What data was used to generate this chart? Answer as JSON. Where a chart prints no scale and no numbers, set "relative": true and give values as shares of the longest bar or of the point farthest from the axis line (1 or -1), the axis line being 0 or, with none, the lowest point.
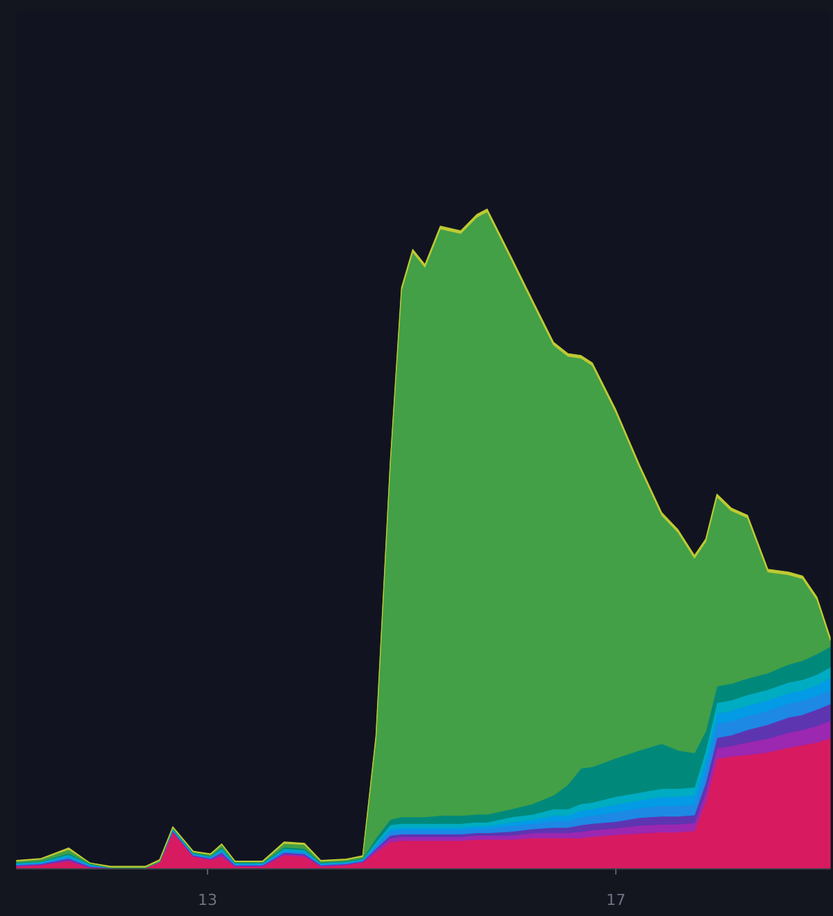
{
  "chart_data": {
    "type": "area",
    "stacked": true,
    "relative": true,
    "x": [
      11.13,
      11.37,
      11.64,
      11.85,
      12.05,
      12.39,
      12.53,
      12.66,
      12.86,
      13.03,
      13.14,
      13.27,
      13.54,
      13.75,
      13.95,
      14.11,
      14.36,
      14.52,
      14.65,
      14.79,
      14.9,
      15.01,
      15.13,
      15.28,
      15.48,
      15.64,
      15.74,
      15.98,
      16.19,
      16.39,
      16.53,
      16.66,
      16.77,
      17.0,
      17.23,
      17.45,
      17.61,
      17.77,
      17.88,
      17.99,
      18.13,
      18.29,
      18.49,
      18.69,
      18.83,
      18.97,
      19.1
    ],
    "xlim": [
      11.13,
      19.1
    ],
    "xticks": [
      13,
      17
    ],
    "series": [
      {
        "color": "#d81b60",
        "values": [
          0.004,
          0.006,
          0.012,
          0.002,
          0.002,
          0.002,
          0.01,
          0.056,
          0.019,
          0.014,
          0.019,
          0.004,
          0.004,
          0.021,
          0.019,
          0.004,
          0.006,
          0.01,
          0.025,
          0.041,
          0.043,
          0.043,
          0.043,
          0.043,
          0.043,
          0.045,
          0.045,
          0.045,
          0.047,
          0.047,
          0.047,
          0.047,
          0.049,
          0.052,
          0.054,
          0.056,
          0.056,
          0.058,
          0.103,
          0.167,
          0.171,
          0.173,
          0.177,
          0.184,
          0.188,
          0.192,
          0.198
        ]
      },
      {
        "color": "#9c27b0",
        "values": [
          0.001,
          0.001,
          0.002,
          0.001,
          0,
          0,
          0.001,
          0.001,
          0.001,
          0.001,
          0.004,
          0.001,
          0.001,
          0.002,
          0.002,
          0.001,
          0.001,
          0.001,
          0.004,
          0.006,
          0.006,
          0.006,
          0.006,
          0.006,
          0.006,
          0.006,
          0.006,
          0.006,
          0.008,
          0.008,
          0.008,
          0.01,
          0.01,
          0.01,
          0.012,
          0.012,
          0.012,
          0.012,
          0.014,
          0.016,
          0.016,
          0.019,
          0.021,
          0.023,
          0.023,
          0.025,
          0.027
        ]
      },
      {
        "color": "#5e35b1",
        "values": [
          0.001,
          0.001,
          0.002,
          0.001,
          0,
          0,
          0,
          0.001,
          0.001,
          0.001,
          0.002,
          0.001,
          0.001,
          0.002,
          0.002,
          0.001,
          0.001,
          0.001,
          0.002,
          0.004,
          0.004,
          0.004,
          0.004,
          0.004,
          0.004,
          0.004,
          0.004,
          0.006,
          0.006,
          0.008,
          0.008,
          0.01,
          0.01,
          0.01,
          0.012,
          0.012,
          0.012,
          0.012,
          0.014,
          0.016,
          0.016,
          0.019,
          0.021,
          0.023,
          0.023,
          0.025,
          0.025
        ]
      },
      {
        "color": "#1e88e5",
        "values": [
          0.001,
          0.001,
          0.002,
          0.001,
          0,
          0,
          0,
          0.001,
          0.001,
          0.001,
          0.002,
          0.001,
          0.001,
          0.002,
          0.002,
          0.001,
          0.001,
          0.001,
          0.004,
          0.006,
          0.006,
          0.006,
          0.006,
          0.006,
          0.006,
          0.006,
          0.006,
          0.008,
          0.008,
          0.01,
          0.01,
          0.012,
          0.012,
          0.014,
          0.014,
          0.016,
          0.016,
          0.016,
          0.019,
          0.021,
          0.021,
          0.021,
          0.021,
          0.021,
          0.021,
          0.021,
          0.021
        ]
      },
      {
        "color": "#039be5",
        "values": [
          0.001,
          0.001,
          0.002,
          0.001,
          0,
          0,
          0,
          0.001,
          0.001,
          0.001,
          0.002,
          0.001,
          0.001,
          0.002,
          0.002,
          0.001,
          0.001,
          0.001,
          0.002,
          0.004,
          0.004,
          0.004,
          0.004,
          0.004,
          0.004,
          0.004,
          0.004,
          0.006,
          0.006,
          0.008,
          0.008,
          0.01,
          0.01,
          0.012,
          0.012,
          0.014,
          0.014,
          0.014,
          0.016,
          0.016,
          0.016,
          0.016,
          0.016,
          0.016,
          0.016,
          0.016,
          0.019
        ]
      },
      {
        "color": "#00acc1",
        "values": [
          0.001,
          0.001,
          0.002,
          0.001,
          0,
          0,
          0,
          0.001,
          0.001,
          0.001,
          0.002,
          0.001,
          0.001,
          0.002,
          0.002,
          0.001,
          0.001,
          0.001,
          0.004,
          0.006,
          0.006,
          0.006,
          0.006,
          0.006,
          0.006,
          0.006,
          0.006,
          0.008,
          0.008,
          0.01,
          0.01,
          0.01,
          0.01,
          0.012,
          0.012,
          0.012,
          0.012,
          0.012,
          0.014,
          0.016,
          0.016,
          0.016,
          0.016,
          0.016,
          0.016,
          0.016,
          0.016
        ]
      },
      {
        "color": "#00897b",
        "values": [
          0.001,
          0.001,
          0.002,
          0.001,
          0,
          0,
          0,
          0.001,
          0.001,
          0.001,
          0.002,
          0.001,
          0.001,
          0.002,
          0.002,
          0.001,
          0.001,
          0.001,
          0.006,
          0.008,
          0.01,
          0.01,
          0.01,
          0.012,
          0.012,
          0.012,
          0.012,
          0.012,
          0.016,
          0.021,
          0.037,
          0.054,
          0.054,
          0.058,
          0.064,
          0.068,
          0.058,
          0.052,
          0.029,
          0.025,
          0.025,
          0.025,
          0.025,
          0.027,
          0.029,
          0.031,
          0.031
        ]
      },
      {
        "color": "#43a047",
        "values": [
          0.002,
          0.003,
          0.006,
          0.001,
          0.001,
          0.001,
          0.002,
          0.001,
          0.001,
          0.002,
          0.004,
          0.001,
          0.001,
          0.006,
          0.006,
          0.002,
          0.002,
          0.003,
          0.151,
          0.538,
          0.798,
          0.856,
          0.833,
          0.889,
          0.882,
          0.905,
          0.913,
          0.831,
          0.757,
          0.682,
          0.649,
          0.621,
          0.608,
          0.524,
          0.429,
          0.346,
          0.33,
          0.295,
          0.287,
          0.287,
          0.262,
          0.243,
          0.153,
          0.136,
          0.124,
          0.082,
          0.01
        ]
      },
      {
        "color": "#c0ca33",
        "values": [
          0.001,
          0.001,
          0.002,
          0,
          0.001,
          0.001,
          0.001,
          0.001,
          0.001,
          0.001,
          0.001,
          0.001,
          0.001,
          0.002,
          0.002,
          0.001,
          0.001,
          0.001,
          0.004,
          0.004,
          0.004,
          0.004,
          0.004,
          0.004,
          0.004,
          0.004,
          0.004,
          0.004,
          0.004,
          0.004,
          0.004,
          0.004,
          0.004,
          0.004,
          0.004,
          0.004,
          0.004,
          0.004,
          0.004,
          0.004,
          0.004,
          0.004,
          0.004,
          0.004,
          0.004,
          0.004,
          0.004
        ]
      }
    ]
  }
}
